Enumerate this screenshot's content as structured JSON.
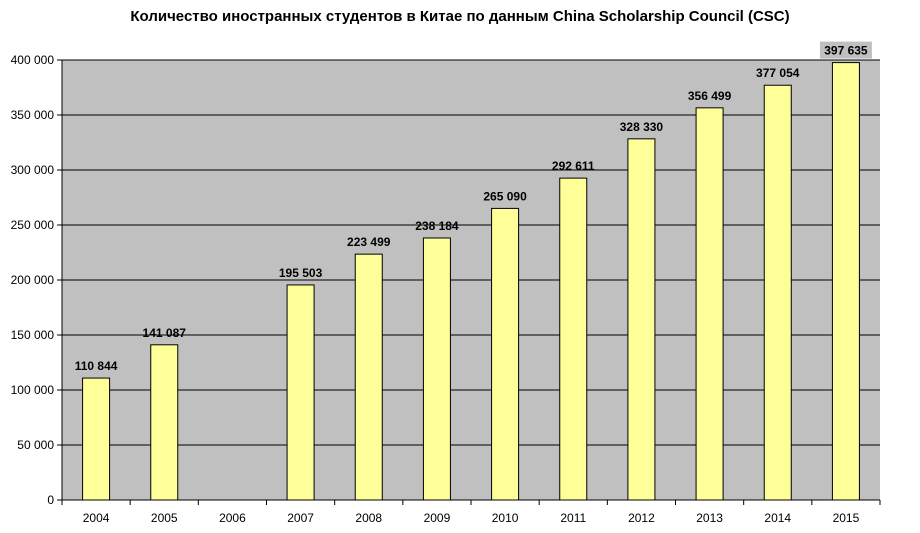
{
  "chart_data": {
    "type": "bar",
    "title": "Количество иностранных студентов в Китае по данным China Scholarship Council (CSC)",
    "categories": [
      "2004",
      "2005",
      "2006",
      "2007",
      "2008",
      "2009",
      "2010",
      "2011",
      "2012",
      "2013",
      "2014",
      "2015"
    ],
    "values": [
      110844,
      141087,
      null,
      195503,
      223499,
      238184,
      265090,
      292611,
      328330,
      356499,
      377054,
      397635
    ],
    "value_labels": [
      "110 844",
      "141 087",
      "",
      "195 503",
      "223 499",
      "238 184",
      "265 090",
      "292 611",
      "328 330",
      "356 499",
      "377 054",
      "397 635"
    ],
    "yticks": [
      0,
      50000,
      100000,
      150000,
      200000,
      250000,
      300000,
      350000,
      400000
    ],
    "ytick_labels": [
      "0",
      "50 000",
      "100 000",
      "150 000",
      "200 000",
      "250 000",
      "300 000",
      "350 000",
      "400 000"
    ],
    "ylim": [
      0,
      400000
    ],
    "xlabel": "",
    "ylabel": "",
    "grid": true,
    "colors": {
      "bar_fill": "#ffff99",
      "bar_stroke": "#000000",
      "plot_bg": "#c0c0c0",
      "grid": "#000000",
      "highlight_bg": "#c0c0c0"
    }
  }
}
